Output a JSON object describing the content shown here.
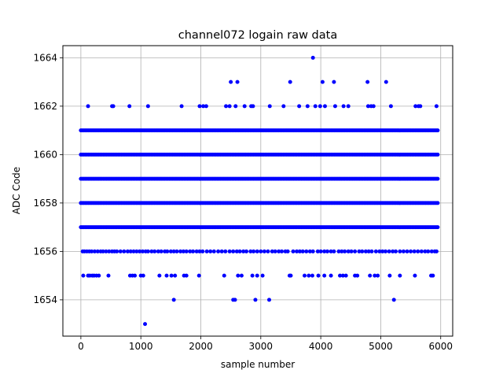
{
  "chart_data": {
    "type": "scatter",
    "title": "channel072 logain raw data",
    "xlabel": "sample number",
    "ylabel": "ADC Code",
    "xlim": [
      -300,
      6200
    ],
    "ylim": [
      1652.5,
      1664.5
    ],
    "x_ticks": [
      0,
      1000,
      2000,
      3000,
      4000,
      5000,
      6000
    ],
    "y_ticks": [
      1654,
      1656,
      1658,
      1660,
      1662,
      1664
    ],
    "grid": true,
    "marker_color": "#0000ff",
    "series": [
      {
        "dense_levels": [
          1661,
          1660,
          1659,
          1658,
          1657
        ],
        "dense_x_range": [
          0,
          5950
        ],
        "level_1656_x": [
          30,
          60,
          100,
          140,
          180,
          230,
          280,
          330,
          370,
          420,
          470,
          520,
          560,
          600,
          660,
          720,
          780,
          830,
          880,
          930,
          980,
          1030,
          1080,
          1120,
          1180,
          1230,
          1290,
          1340,
          1400,
          1440,
          1500,
          1550,
          1600,
          1660,
          1710,
          1760,
          1820,
          1870,
          1930,
          1980,
          2030,
          2100,
          2160,
          2220,
          2290,
          2350,
          2410,
          2480,
          2540,
          2600,
          2650,
          2710,
          2760,
          2830,
          2880,
          2940,
          3000,
          3060,
          3120,
          3190,
          3240,
          3300,
          3350,
          3410,
          3450,
          3540,
          3600,
          3650,
          3700,
          3760,
          3820,
          3870,
          3950,
          4000,
          4060,
          4110,
          4170,
          4220,
          4300,
          4350,
          4400,
          4460,
          4510,
          4570,
          4640,
          4690,
          4750,
          4800,
          4850,
          4920,
          4980,
          5030,
          5080,
          5140,
          5200,
          5250,
          5320,
          5380,
          5440,
          5500,
          5560,
          5620,
          5680,
          5740,
          5790,
          5850,
          5900,
          5930
        ],
        "level_1655_x": [
          40,
          120,
          150,
          190,
          220,
          260,
          300,
          460,
          820,
          860,
          900,
          1000,
          1040,
          1310,
          1430,
          1510,
          1570,
          1720,
          1760,
          1970,
          2390,
          2620,
          2680,
          2860,
          2940,
          3030,
          3480,
          3500,
          3730,
          3800,
          3860,
          3960,
          4060,
          4170,
          4320,
          4370,
          4420,
          4570,
          4610,
          4820,
          4900,
          4950,
          5150,
          5320,
          5570,
          5840,
          5870
        ],
        "level_1662_x": [
          120,
          520,
          540,
          810,
          1120,
          1680,
          1980,
          2040,
          2090,
          2420,
          2480,
          2580,
          2730,
          2840,
          2870,
          3150,
          3380,
          3640,
          3780,
          3910,
          3990,
          4070,
          4240,
          4380,
          4460,
          4790,
          4840,
          4880,
          5170,
          5580,
          5630,
          5660,
          5930
        ],
        "level_1663_x": [
          2500,
          2610,
          3490,
          4030,
          4220,
          4780,
          5090
        ],
        "level_1664_x": [
          3870
        ],
        "level_1654_x": [
          1550,
          2540,
          2570,
          2910,
          3140,
          5220
        ],
        "level_1653_x": [
          1070
        ]
      }
    ]
  }
}
